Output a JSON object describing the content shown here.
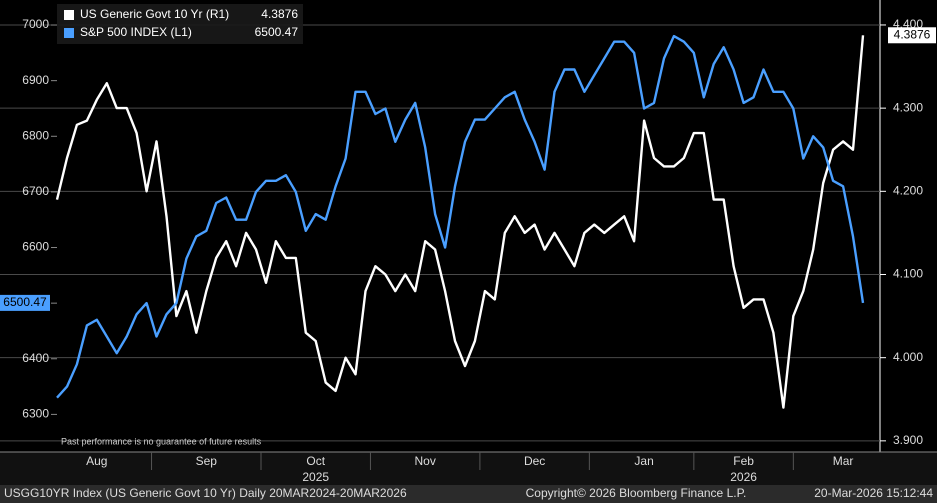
{
  "chart_data": {
    "type": "line",
    "note": "Past performance is no guarantee of future results",
    "footer_left": "USGG10YR Index (US Generic Govt 10 Yr) Daily 20MAR2024-20MAR2026",
    "footer_center": "Copyright© 2026 Bloomberg Finance L.P.",
    "footer_right": "20-Mar-2026 15:12:44",
    "categories": [
      null,
      null,
      null,
      null,
      "Aug",
      null,
      null,
      null,
      null,
      null,
      null,
      null,
      null,
      null,
      null,
      "Sep",
      null,
      null,
      null,
      null,
      null,
      null,
      null,
      null,
      null,
      null,
      "Oct",
      null,
      null,
      null,
      null,
      null,
      null,
      null,
      null,
      null,
      null,
      "Nov",
      null,
      null,
      null,
      null,
      null,
      null,
      null,
      null,
      null,
      null,
      "Dec",
      null,
      null,
      null,
      null,
      null,
      null,
      null,
      null,
      null,
      null,
      "Jan",
      null,
      null,
      null,
      null,
      null,
      null,
      null,
      null,
      null,
      "Feb",
      null,
      null,
      null,
      null,
      null,
      null,
      null,
      null,
      null,
      "Mar",
      null,
      null
    ],
    "category_years": [
      null,
      null,
      null,
      null,
      null,
      null,
      null,
      null,
      null,
      null,
      null,
      null,
      null,
      null,
      null,
      null,
      null,
      null,
      null,
      null,
      null,
      null,
      null,
      null,
      null,
      null,
      "2025",
      null,
      null,
      null,
      null,
      null,
      null,
      null,
      null,
      null,
      null,
      null,
      null,
      null,
      null,
      null,
      null,
      null,
      null,
      null,
      null,
      null,
      null,
      null,
      null,
      null,
      null,
      null,
      null,
      null,
      null,
      null,
      null,
      null,
      null,
      null,
      null,
      null,
      null,
      null,
      null,
      null,
      null,
      "2026",
      null,
      null,
      null,
      null,
      null,
      null,
      null,
      null,
      null,
      null,
      null,
      null
    ],
    "ylim": [
      6236,
      7036
    ],
    "yticks": [
      6300,
      6400,
      6500,
      6600,
      6700,
      6800,
      6900,
      7000
    ],
    "y2lim": [
      3.889,
      4.424
    ],
    "y2ticks": [
      {
        "value": 3.9,
        "label": "3.900"
      },
      {
        "value": 4.0,
        "label": "4.000"
      },
      {
        "value": 4.1,
        "label": "4.100"
      },
      {
        "value": 4.2,
        "label": "4.200"
      },
      {
        "value": 4.3,
        "label": "4.300"
      },
      {
        "value": 4.4,
        "label": "4.400"
      }
    ],
    "grid": true,
    "series": [
      {
        "name": "US Generic Govt 10 Yr (R1)",
        "color": "#ffffff",
        "axis": "y2",
        "values": [
          4.19,
          4.24,
          4.28,
          4.285,
          4.31,
          4.33,
          4.3,
          4.3,
          4.27,
          4.2,
          4.26,
          4.17,
          4.05,
          4.08,
          4.03,
          4.08,
          4.12,
          4.14,
          4.11,
          4.15,
          4.13,
          4.09,
          4.14,
          4.12,
          4.12,
          4.03,
          4.02,
          3.97,
          3.96,
          4.0,
          3.98,
          4.08,
          4.11,
          4.1,
          4.08,
          4.1,
          4.08,
          4.14,
          4.13,
          4.08,
          4.02,
          3.99,
          4.02,
          4.08,
          4.07,
          4.15,
          4.17,
          4.15,
          4.16,
          4.13,
          4.15,
          4.13,
          4.11,
          4.15,
          4.16,
          4.15,
          4.16,
          4.17,
          4.14,
          4.285,
          4.24,
          4.23,
          4.23,
          4.24,
          4.27,
          4.27,
          4.19,
          4.19,
          4.11,
          4.06,
          4.07,
          4.07,
          4.03,
          3.94,
          4.05,
          4.08,
          4.13,
          4.21,
          4.25,
          4.26,
          4.25,
          4.3876
        ]
      },
      {
        "name": "S&P 500 INDEX (L1)",
        "color": "#4a9fff",
        "axis": "y",
        "values": [
          6330,
          6350,
          6390,
          6460,
          6470,
          6440,
          6410,
          6440,
          6480,
          6500,
          6440,
          6480,
          6500,
          6580,
          6620,
          6630,
          6680,
          6690,
          6650,
          6650,
          6700,
          6720,
          6720,
          6730,
          6700,
          6630,
          6660,
          6650,
          6710,
          6760,
          6880,
          6880,
          6840,
          6850,
          6790,
          6830,
          6860,
          6780,
          6660,
          6600,
          6710,
          6790,
          6830,
          6830,
          6850,
          6870,
          6880,
          6830,
          6790,
          6740,
          6880,
          6920,
          6920,
          6880,
          6910,
          6940,
          6970,
          6970,
          6950,
          6850,
          6860,
          6940,
          6980,
          6970,
          6950,
          6870,
          6930,
          6960,
          6920,
          6860,
          6870,
          6920,
          6880,
          6880,
          6850,
          6760,
          6800,
          6780,
          6720,
          6710,
          6620,
          6500.47
        ]
      }
    ]
  }
}
